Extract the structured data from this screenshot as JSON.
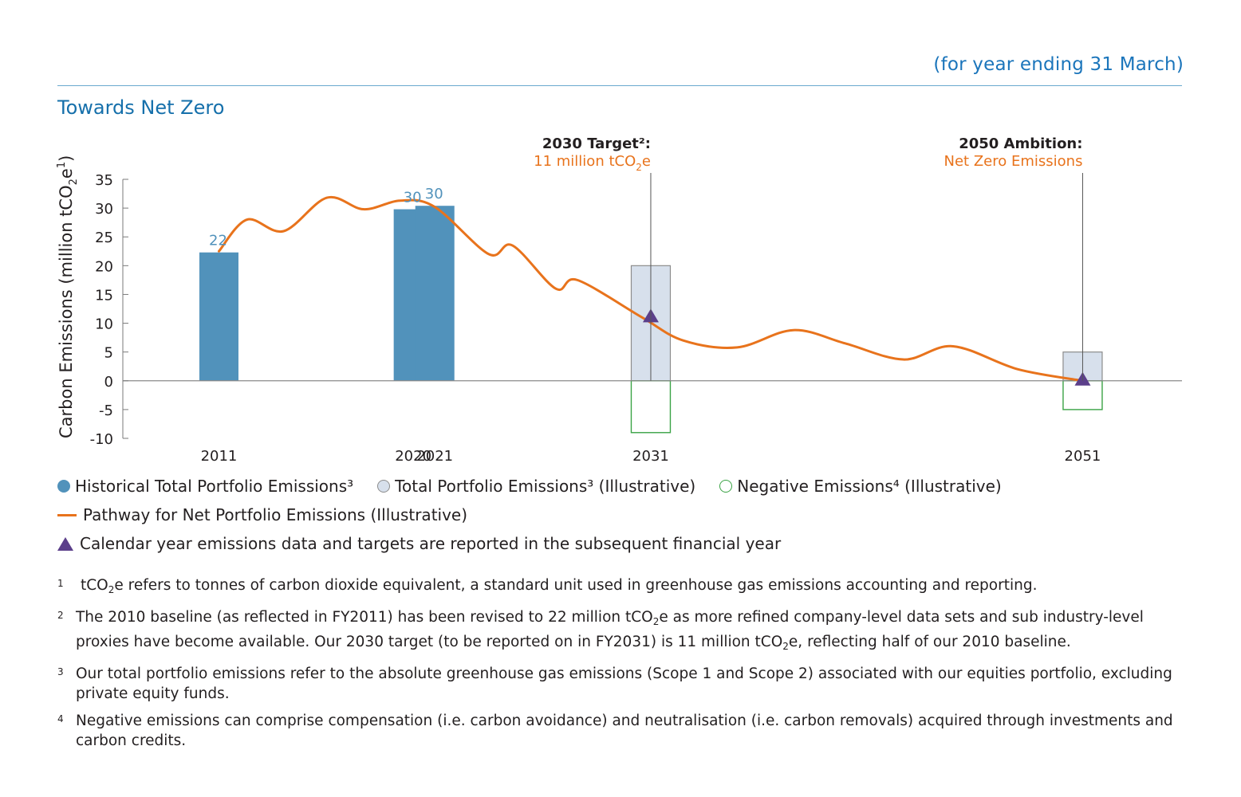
{
  "header": {
    "period": "(for year ending 31 March)",
    "title": "Towards Net Zero"
  },
  "colors": {
    "accent": "#1670ab",
    "historical_bar": "#5192bb",
    "illustrative_bar_fill": "#d7e0ec",
    "illustrative_bar_stroke": "#8c8c8c",
    "negative_stroke": "#3aa345",
    "pathway": "#e8731c",
    "marker": "#5b3f8a"
  },
  "chart_data": {
    "type": "bar",
    "ylabel_prefix": "Carbon Emissions (million tCO",
    "ylabel_sub": "2",
    "ylabel_mid": "e",
    "ylabel_sup": "1",
    "ylabel_suffix": ")",
    "ylim": [
      -10,
      35
    ],
    "yticks": [
      "35",
      "30",
      "25",
      "20",
      "15",
      "10",
      "5",
      "0",
      "-5",
      "-10"
    ],
    "xlim": [
      2006.55,
      2055.6
    ],
    "categories": [
      "2011",
      "2020",
      "2021",
      "2031",
      "2051"
    ],
    "series": [
      {
        "name": "Historical Total Portfolio Emissions³",
        "points": [
          {
            "x": 2011,
            "value": 22.3,
            "label": "22"
          },
          {
            "x": 2020,
            "value": 29.8,
            "label": "30"
          },
          {
            "x": 2021,
            "value": 30.4,
            "label": "30"
          }
        ]
      },
      {
        "name": "Total Portfolio Emissions³ (Illustrative)",
        "points": [
          {
            "x": 2031,
            "value": 20
          },
          {
            "x": 2051,
            "value": 5
          }
        ]
      },
      {
        "name": "Negative Emissions⁴ (Illustrative)",
        "points": [
          {
            "x": 2031,
            "value": -9
          },
          {
            "x": 2051,
            "value": -5
          }
        ]
      },
      {
        "name": "Pathway for Net Portfolio Emissions (Illustrative)",
        "points": [
          [
            2011,
            22.5
          ],
          [
            2012.3,
            28
          ],
          [
            2014,
            26
          ],
          [
            2016,
            31.8
          ],
          [
            2017.7,
            29.8
          ],
          [
            2019.4,
            31.3
          ],
          [
            2021,
            30.2
          ],
          [
            2023.5,
            22
          ],
          [
            2024.6,
            23.5
          ],
          [
            2026.6,
            16
          ],
          [
            2027.6,
            17.5
          ],
          [
            2030.6,
            11
          ],
          [
            2032.5,
            7
          ],
          [
            2035,
            5.8
          ],
          [
            2037.6,
            8.8
          ],
          [
            2040,
            6.5
          ],
          [
            2042.7,
            3.7
          ],
          [
            2045,
            6
          ],
          [
            2048,
            2
          ],
          [
            2051,
            0
          ]
        ]
      }
    ],
    "markers": [
      {
        "x": 2031,
        "value": 11
      },
      {
        "x": 2051,
        "value": 0
      }
    ],
    "annotations": [
      {
        "x": 2031,
        "title": "2030 Target²:",
        "subtitle_prefix": "11 million tCO",
        "subtitle_sub": "2",
        "subtitle_suffix": "e"
      },
      {
        "x": 2051,
        "title": "2050 Ambition:",
        "subtitle_prefix": "Net Zero Emissions",
        "subtitle_sub": "",
        "subtitle_suffix": ""
      }
    ]
  },
  "legend": {
    "historical": "Historical Total Portfolio Emissions³",
    "total_illustrative": "Total Portfolio Emissions³ (Illustrative)",
    "negative": "Negative Emissions⁴ (Illustrative)",
    "pathway": "Pathway for Net Portfolio Emissions (Illustrative)",
    "marker": "Calendar year emissions data and targets are reported in the subsequent financial year"
  },
  "footnotes": {
    "n1": "1",
    "t1a": "tCO",
    "t1sub": "2",
    "t1b": "e refers to tonnes of carbon dioxide equivalent, a standard unit used in greenhouse gas emissions accounting and reporting.",
    "n2": "2",
    "t2a": "The 2010 baseline (as reflected in FY2011) has been revised to 22 million tCO",
    "t2sub1": "2",
    "t2b": "e as more refined company-level data sets and sub industry-level proxies have become available. Our 2030 target (to be reported on in FY2031) is 11 million tCO",
    "t2sub2": "2",
    "t2c": "e, reflecting half of our 2010 baseline.",
    "n3": "3",
    "t3": "Our total portfolio emissions refer to the absolute greenhouse gas emissions (Scope 1 and Scope 2) associated with our equities portfolio, excluding private equity funds.",
    "n4": "4",
    "t4": "Negative emissions can comprise compensation (i.e. carbon avoidance) and neutralisation (i.e. carbon removals) acquired through investments and carbon credits."
  }
}
